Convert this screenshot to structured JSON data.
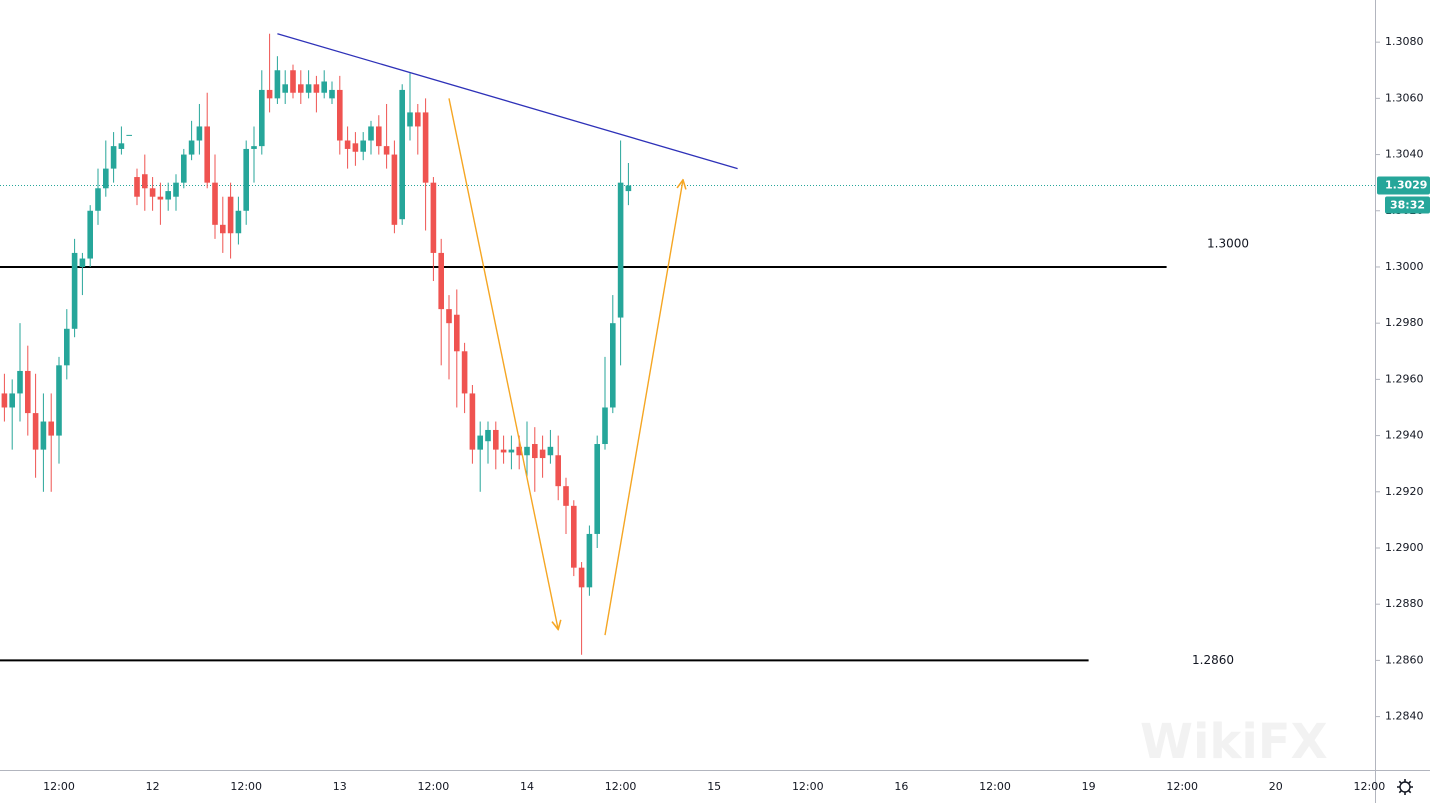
{
  "chart_data": {
    "type": "candlestick",
    "categories": [
      null,
      null,
      null,
      null,
      null,
      null,
      null,
      "12:00",
      null,
      null,
      null,
      null,
      null,
      null,
      null,
      null,
      null,
      null,
      null,
      "12",
      null,
      null,
      null,
      null,
      null,
      null,
      null,
      null,
      null,
      null,
      null,
      "12:00",
      null,
      null,
      null,
      null,
      null,
      null,
      null,
      null,
      null,
      null,
      null,
      "13",
      null,
      null,
      null,
      null,
      null,
      null,
      null,
      null,
      null,
      null,
      null,
      "12:00",
      null,
      null,
      null,
      null,
      null,
      null,
      null,
      null,
      null,
      null,
      null,
      "14",
      null,
      null,
      null,
      null,
      null,
      null,
      null,
      null,
      null,
      null,
      null,
      "12:00",
      null,
      null,
      null,
      null,
      null,
      null,
      null,
      null,
      null,
      null,
      null,
      "15",
      null,
      null,
      null,
      null,
      null,
      null,
      null,
      null,
      null,
      null,
      null,
      "12:00",
      null,
      null,
      null,
      null,
      null,
      null,
      null,
      null,
      null,
      null,
      null,
      "16",
      null,
      null,
      null,
      null,
      null,
      null,
      null,
      null,
      null,
      null,
      null,
      "12:00",
      null,
      null,
      null,
      null,
      null,
      null,
      null,
      null,
      null,
      null,
      null,
      "19",
      null,
      null,
      null,
      null,
      null,
      null,
      null,
      null,
      null,
      null,
      null,
      "12:00",
      null,
      null,
      null,
      null,
      null,
      null,
      null,
      null,
      null,
      null,
      null,
      "20",
      null,
      null,
      null,
      null,
      null,
      null,
      null,
      null,
      null,
      null,
      null,
      "12:00"
    ],
    "open": [
      1.2955,
      1.295,
      1.2955,
      1.2963,
      1.2948,
      1.2935,
      1.2945,
      1.294,
      1.2965,
      1.2978,
      1.3,
      1.3003,
      1.302,
      1.3028,
      1.3035,
      1.3042,
      1.3047,
      1.3032,
      1.3033,
      1.3028,
      1.3025,
      1.3024,
      1.3025,
      1.303,
      1.304,
      1.3045,
      1.305,
      1.303,
      1.3015,
      1.3025,
      1.3012,
      1.302,
      1.3042,
      1.3043,
      1.3063,
      1.306,
      1.3062,
      1.307,
      1.3065,
      1.3062,
      1.3065,
      1.3062,
      1.306,
      1.3063,
      1.3045,
      1.3044,
      1.3041,
      1.3045,
      1.305,
      1.3043,
      1.304,
      1.3017,
      1.305,
      1.3055,
      1.3055,
      1.303,
      1.3005,
      1.2985,
      1.2983,
      1.297,
      1.2955,
      1.2935,
      1.2938,
      1.2942,
      1.2935,
      1.2934,
      1.2936,
      1.2933,
      1.2937,
      1.2935,
      1.2933,
      1.2933,
      1.2922,
      1.2915,
      1.2893,
      1.2886,
      1.2905,
      1.2937,
      1.295,
      1.2982,
      1.3027,
      null,
      null,
      null,
      null,
      null,
      null,
      null,
      null,
      null,
      null,
      null,
      null,
      null,
      null,
      null,
      null,
      null,
      null,
      null,
      null,
      null,
      null,
      null,
      null,
      null,
      null,
      null,
      null,
      null,
      null,
      null,
      null,
      null,
      null,
      null,
      null,
      null,
      null,
      null,
      null,
      null,
      null,
      null,
      null,
      null,
      null,
      null,
      null,
      null,
      null,
      null,
      null,
      null,
      null,
      null,
      null,
      null,
      null,
      null,
      null,
      null,
      null,
      null,
      null,
      null,
      null,
      null,
      null,
      null,
      null,
      null,
      null,
      null,
      null,
      null,
      null,
      null,
      null,
      null,
      null,
      null,
      null,
      null,
      null,
      null,
      null,
      null,
      null,
      null,
      null,
      null,
      null,
      null,
      null,
      null
    ],
    "high": [
      1.2962,
      1.296,
      1.298,
      1.2972,
      1.2962,
      1.2955,
      1.2955,
      1.2968,
      1.2985,
      1.301,
      1.3005,
      1.3022,
      1.3035,
      1.3045,
      1.3048,
      1.305,
      1.3047,
      1.3035,
      1.304,
      1.3032,
      1.303,
      1.303,
      1.3033,
      1.3042,
      1.3052,
      1.3058,
      1.3062,
      1.304,
      1.3025,
      1.303,
      1.3025,
      1.3045,
      1.305,
      1.307,
      1.3083,
      1.3075,
      1.307,
      1.3072,
      1.307,
      1.307,
      1.3068,
      1.307,
      1.3066,
      1.3068,
      1.305,
      1.3048,
      1.3048,
      1.3052,
      1.3054,
      1.3058,
      1.3045,
      1.3065,
      1.3069,
      1.3058,
      1.306,
      1.3032,
      1.301,
      1.299,
      1.2992,
      1.2973,
      1.2958,
      1.2945,
      1.2945,
      1.2945,
      1.294,
      1.294,
      1.294,
      1.2945,
      1.2943,
      1.294,
      1.2942,
      1.294,
      1.2925,
      1.2917,
      1.2895,
      1.2908,
      1.294,
      1.2968,
      1.299,
      1.3045,
      1.3037,
      null,
      null,
      null,
      null,
      null,
      null,
      null,
      null,
      null,
      null,
      null,
      null,
      null,
      null,
      null,
      null,
      null,
      null,
      null,
      null,
      null,
      null,
      null,
      null,
      null,
      null,
      null,
      null,
      null,
      null,
      null,
      null,
      null,
      null,
      null,
      null,
      null,
      null,
      null,
      null,
      null,
      null,
      null,
      null,
      null,
      null,
      null,
      null,
      null,
      null,
      null,
      null,
      null,
      null,
      null,
      null,
      null,
      null,
      null,
      null,
      null,
      null,
      null,
      null,
      null,
      null,
      null,
      null,
      null,
      null,
      null,
      null,
      null,
      null,
      null,
      null,
      null,
      null,
      null,
      null,
      null,
      null,
      null,
      null,
      null,
      null,
      null,
      null,
      null,
      null,
      null,
      null,
      null,
      null,
      null
    ],
    "low": [
      1.2945,
      1.2935,
      1.2945,
      1.294,
      1.2925,
      1.292,
      1.292,
      1.293,
      1.296,
      1.2975,
      1.299,
      1.3,
      1.3015,
      1.3025,
      1.303,
      1.304,
      1.3047,
      1.3022,
      1.302,
      1.302,
      1.3015,
      1.302,
      1.302,
      1.3028,
      1.3038,
      1.304,
      1.3028,
      1.301,
      1.3005,
      1.3003,
      1.3008,
      1.3015,
      1.303,
      1.304,
      1.3055,
      1.3058,
      1.3058,
      1.306,
      1.3058,
      1.306,
      1.3055,
      1.306,
      1.3058,
      1.304,
      1.3035,
      1.3036,
      1.3038,
      1.304,
      1.304,
      1.3035,
      1.3012,
      1.3015,
      1.3045,
      1.304,
      1.3013,
      1.2995,
      1.2965,
      1.296,
      1.295,
      1.2948,
      1.293,
      1.292,
      1.293,
      1.2928,
      1.293,
      1.2928,
      1.2928,
      1.2925,
      1.292,
      1.2925,
      1.293,
      1.2917,
      1.2905,
      1.289,
      1.2862,
      1.2883,
      1.29,
      1.2935,
      1.2948,
      1.2965,
      1.3022,
      null,
      null,
      null,
      null,
      null,
      null,
      null,
      null,
      null,
      null,
      null,
      null,
      null,
      null,
      null,
      null,
      null,
      null,
      null,
      null,
      null,
      null,
      null,
      null,
      null,
      null,
      null,
      null,
      null,
      null,
      null,
      null,
      null,
      null,
      null,
      null,
      null,
      null,
      null,
      null,
      null,
      null,
      null,
      null,
      null,
      null,
      null,
      null,
      null,
      null,
      null,
      null,
      null,
      null,
      null,
      null,
      null,
      null,
      null,
      null,
      null,
      null,
      null,
      null,
      null,
      null,
      null,
      null,
      null,
      null,
      null,
      null,
      null,
      null,
      null,
      null,
      null,
      null,
      null,
      null,
      null,
      null,
      null,
      null,
      null,
      null,
      null,
      null,
      null,
      null,
      null,
      null,
      null,
      null,
      null
    ],
    "close": [
      1.295,
      1.2955,
      1.2963,
      1.2948,
      1.2935,
      1.2945,
      1.294,
      1.2965,
      1.2978,
      1.3005,
      1.3003,
      1.302,
      1.3028,
      1.3035,
      1.3043,
      1.3044,
      1.3047,
      1.3025,
      1.3028,
      1.3025,
      1.3024,
      1.3027,
      1.303,
      1.304,
      1.3045,
      1.305,
      1.303,
      1.3015,
      1.3012,
      1.3012,
      1.302,
      1.3042,
      1.3043,
      1.3063,
      1.306,
      1.307,
      1.3065,
      1.3062,
      1.3062,
      1.3065,
      1.3062,
      1.3066,
      1.3063,
      1.3045,
      1.3042,
      1.3041,
      1.3045,
      1.305,
      1.3043,
      1.304,
      1.3015,
      1.3063,
      1.3055,
      1.305,
      1.303,
      1.3005,
      1.2985,
      1.298,
      1.297,
      1.2955,
      1.2935,
      1.294,
      1.2942,
      1.2935,
      1.2934,
      1.2935,
      1.2933,
      1.2936,
      1.2932,
      1.2932,
      1.2936,
      1.2922,
      1.2915,
      1.2893,
      1.2886,
      1.2905,
      1.2937,
      1.295,
      1.298,
      1.303,
      1.3029,
      null,
      null,
      null,
      null,
      null,
      null,
      null,
      null,
      null,
      null,
      null,
      null,
      null,
      null,
      null,
      null,
      null,
      null,
      null,
      null,
      null,
      null,
      null,
      null,
      null,
      null,
      null,
      null,
      null,
      null,
      null,
      null,
      null,
      null,
      null,
      null,
      null,
      null,
      null,
      null,
      null,
      null,
      null,
      null,
      null,
      null,
      null,
      null,
      null,
      null,
      null,
      null,
      null,
      null,
      null,
      null,
      null,
      null,
      null,
      null,
      null,
      null,
      null,
      null,
      null,
      null,
      null,
      null,
      null,
      null,
      null,
      null,
      null,
      null,
      null,
      null,
      null,
      null,
      null,
      null,
      null,
      null,
      null,
      null,
      null,
      null,
      null,
      null,
      null,
      null,
      null,
      null,
      null,
      null,
      null
    ],
    "up_color": "#26a69a",
    "down_color": "#ef5350",
    "ylim": [
      1.2821,
      1.3095
    ],
    "yticks": [
      {
        "value": 1.284,
        "label": "1.2840"
      },
      {
        "value": 1.286,
        "label": "1.2860"
      },
      {
        "value": 1.288,
        "label": "1.2880"
      },
      {
        "value": 1.29,
        "label": "1.2900"
      },
      {
        "value": 1.292,
        "label": "1.2920"
      },
      {
        "value": 1.294,
        "label": "1.2940"
      },
      {
        "value": 1.296,
        "label": "1.2960"
      },
      {
        "value": 1.298,
        "label": "1.2980"
      },
      {
        "value": 1.3,
        "label": "1.3000"
      },
      {
        "value": 1.302,
        "label": "1.3020"
      },
      {
        "value": 1.304,
        "label": "1.3040"
      },
      {
        "value": 1.306,
        "label": "1.3060"
      },
      {
        "value": 1.308,
        "label": "1.3080"
      }
    ],
    "grid": false,
    "last_price": {
      "value": 1.3029,
      "label": "1.3029"
    },
    "countdown": "38:32",
    "levels": [
      {
        "value": 1.3,
        "label": "1.3000",
        "color": "#000000"
      },
      {
        "value": 1.286,
        "label": "1.2860",
        "color": "#000000"
      }
    ],
    "trendline": {
      "start": 1.3083,
      "end": 1.3035,
      "color": "#2e31b8"
    },
    "arrows": {
      "color": "#f5a623",
      "items": [
        {
          "start": 1.306,
          "end": 1.2871
        },
        {
          "start": 1.2869,
          "end": 1.3031
        }
      ]
    },
    "watermark": "WikiFX"
  }
}
